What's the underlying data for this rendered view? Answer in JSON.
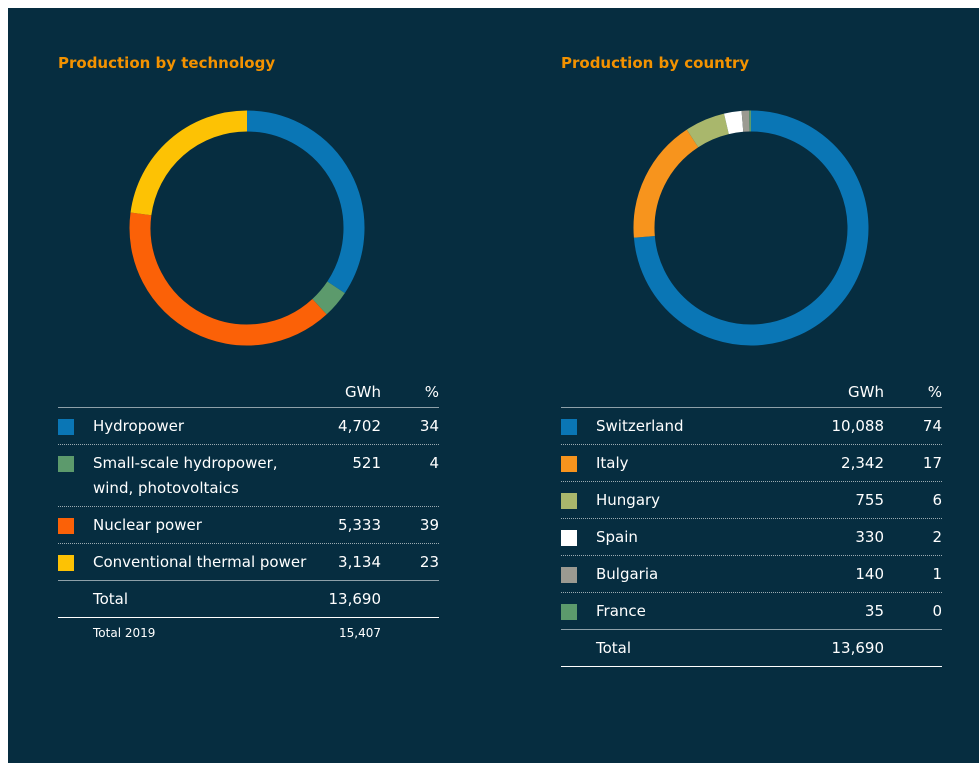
{
  "chart_data": [
    {
      "type": "donut",
      "title": "Production by technology",
      "columns": [
        "GWh",
        "%"
      ],
      "categories": [
        "Hydropower",
        "Small-scale hydropower,\nwind, photovoltaics",
        "Nuclear power",
        "Conventional thermal power"
      ],
      "values": [
        4702,
        521,
        5333,
        3134
      ],
      "value_labels": [
        "4,702",
        "521",
        "5,333",
        "3,134"
      ],
      "percent": [
        34,
        4,
        39,
        23
      ],
      "colors": [
        "#0a76b5",
        "#5c9a6c",
        "#fb6107",
        "#fdc204"
      ],
      "total": {
        "label": "Total",
        "value": 13690,
        "value_label": "13,690"
      },
      "previous_total": {
        "label": "Total 2019",
        "value": 15407,
        "value_label": "15,407"
      }
    },
    {
      "type": "donut",
      "title": "Production by country",
      "columns": [
        "GWh",
        "%"
      ],
      "categories": [
        "Switzerland",
        "Italy",
        "Hungary",
        "Spain",
        "Bulgaria",
        "France"
      ],
      "values": [
        10088,
        2342,
        755,
        330,
        140,
        35
      ],
      "value_labels": [
        "10,088",
        "2,342",
        "755",
        "330",
        "140",
        "35"
      ],
      "percent": [
        74,
        17,
        6,
        2,
        1,
        0
      ],
      "colors": [
        "#0a76b5",
        "#f7941d",
        "#a9b76c",
        "#ffffff",
        "#9b9a91",
        "#5c9a6c"
      ],
      "total": {
        "label": "Total",
        "value": 13690,
        "value_label": "13,690"
      }
    }
  ]
}
